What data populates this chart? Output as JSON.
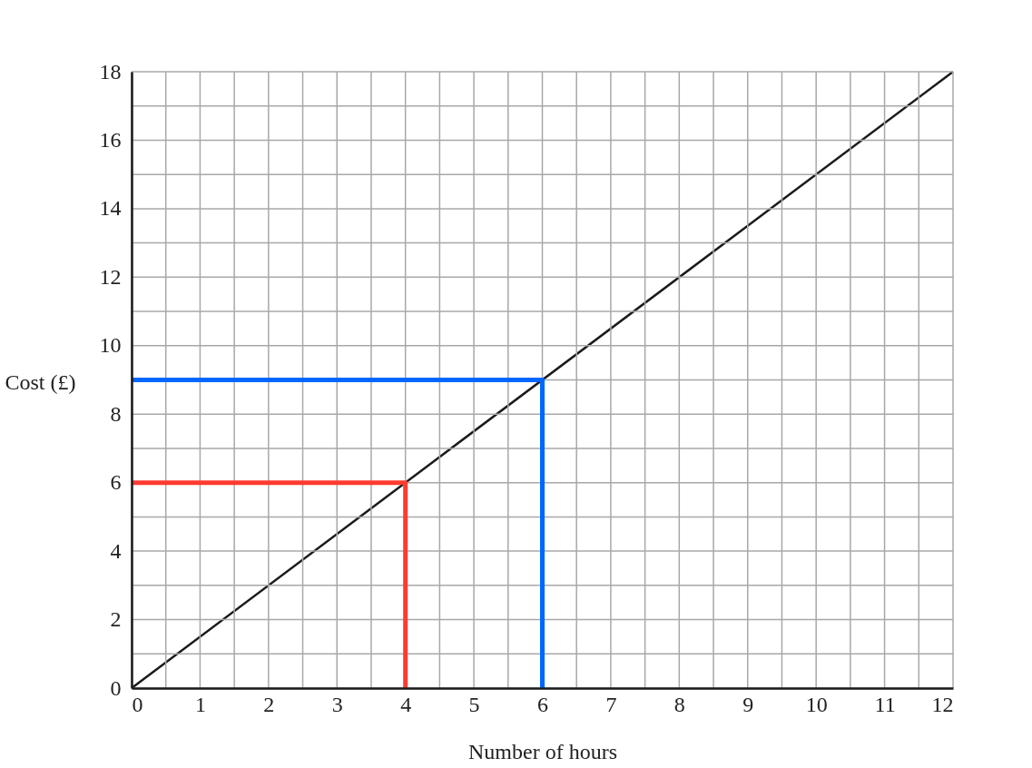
{
  "chart_data": {
    "type": "line",
    "xlabel": "Number of hours",
    "ylabel": "Cost (£)",
    "xlim": [
      0,
      12
    ],
    "ylim": [
      0,
      18
    ],
    "xticks": [
      0,
      {
        "value": 0.5,
        "label": null
      },
      1,
      {
        "value": 1.5,
        "label": null
      },
      2,
      {
        "value": 2.5,
        "label": null
      },
      3,
      {
        "value": 3.5,
        "label": null
      },
      4,
      {
        "value": 4.5,
        "label": null
      },
      5,
      {
        "value": 5.5,
        "label": null
      },
      6,
      {
        "value": 6.5,
        "label": null
      },
      7,
      {
        "value": 7.5,
        "label": null
      },
      8,
      {
        "value": 8.5,
        "label": null
      },
      9,
      {
        "value": 9.5,
        "label": null
      },
      10,
      {
        "value": 10.5,
        "label": null
      },
      11,
      {
        "value": 11.5,
        "label": null
      },
      12
    ],
    "yticks": [
      0,
      {
        "value": 1,
        "label": null
      },
      2,
      {
        "value": 3,
        "label": null
      },
      4,
      {
        "value": 5,
        "label": null
      },
      6,
      {
        "value": 7,
        "label": null
      },
      8,
      {
        "value": 9,
        "label": null
      },
      10,
      {
        "value": 11,
        "label": null
      },
      12,
      {
        "value": 13,
        "label": null
      },
      14,
      {
        "value": 15,
        "label": null
      },
      16,
      {
        "value": 17,
        "label": null
      },
      18
    ],
    "grid": true,
    "series": [
      {
        "color": "#1a1a1a",
        "x": [
          0,
          12
        ],
        "values": [
          0,
          18
        ]
      },
      {
        "color": "#ff3b30",
        "x": [
          0,
          4,
          4
        ],
        "values": [
          6,
          6,
          0
        ]
      },
      {
        "color": "#0066ff",
        "x": [
          0,
          6,
          6
        ],
        "values": [
          9,
          9,
          0
        ]
      }
    ]
  }
}
